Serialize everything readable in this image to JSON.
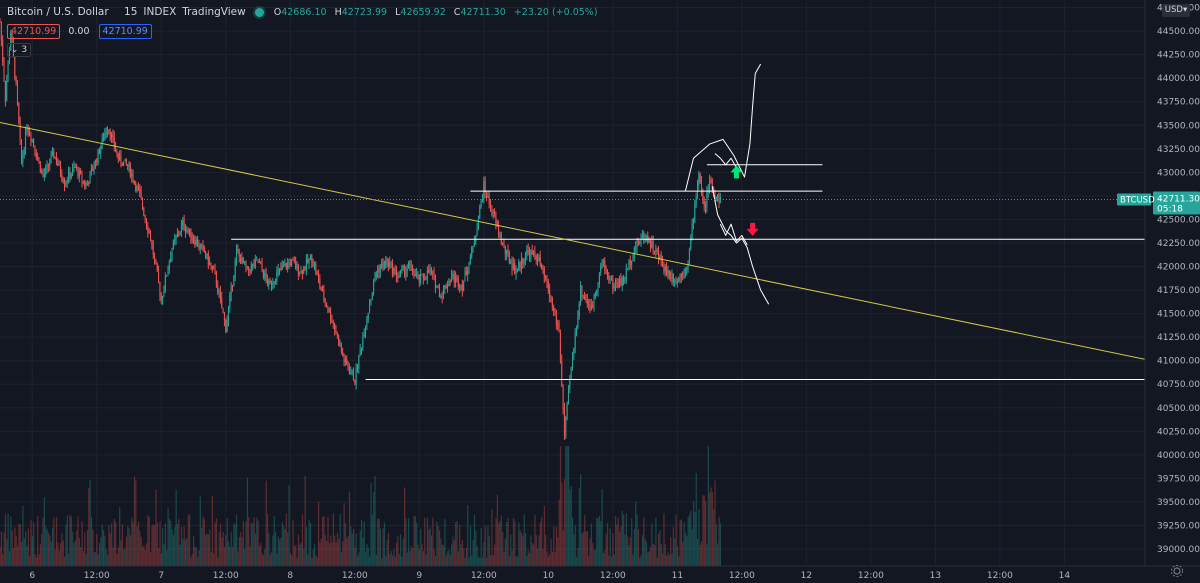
{
  "header": {
    "symbol_title": "Bitcoin / U.S. Dollar",
    "interval": "15",
    "exchange": "INDEX",
    "source": "TradingView",
    "status_color": "#26a69a",
    "o_label": "O",
    "o_value": "42686.10",
    "h_label": "H",
    "h_value": "42723.99",
    "l_label": "L",
    "l_value": "42659.92",
    "c_label": "C",
    "c_value": "42711.30",
    "change": "+23.20 (+0.05%)"
  },
  "quote": {
    "bid": "42710.99",
    "spread": "0.00",
    "ask": "42710.99"
  },
  "indicators_toggle": {
    "icon": "chevron-down-icon",
    "count": "3"
  },
  "currency_button": "USD",
  "settings_icon": "gear-icon",
  "colors": {
    "background": "#131722",
    "up": "#26a69a",
    "down": "#ef5350",
    "trendline": "#d1c94a",
    "levels": "#ffffff",
    "arrow_up": "#00e676",
    "arrow_down": "#ff1744"
  },
  "chart_data": {
    "type": "candlestick",
    "symbol": "BTCUSD",
    "interval_minutes": 15,
    "price_axis": {
      "ticks": [
        "39000.00",
        "39250.00",
        "39500.00",
        "39750.00",
        "40000.00",
        "40250.00",
        "40500.00",
        "40750.00",
        "41000.00",
        "41250.00",
        "41500.00",
        "41750.00",
        "42000.00",
        "42250.00",
        "42500.00",
        "42750.00",
        "43000.00",
        "43250.00",
        "43500.00",
        "43750.00",
        "44000.00",
        "44250.00",
        "44500.00",
        "44750.00"
      ],
      "range": [
        38820,
        44830
      ]
    },
    "time_axis": {
      "ticks": [
        "6",
        "12:00",
        "7",
        "12:00",
        "8",
        "12:00",
        "9",
        "12:00",
        "10",
        "12:00",
        "11",
        "12:00",
        "12",
        "12:00",
        "13",
        "12:00",
        "14"
      ],
      "range_hours": [
        0,
        213
      ]
    },
    "last_price": {
      "label": "BTCUSD",
      "value": "42711.30",
      "countdown": "05:18",
      "price": 42711.3
    },
    "price_path": [
      [
        0,
        44600
      ],
      [
        1,
        43800
      ],
      [
        2,
        44500
      ],
      [
        3,
        43900
      ],
      [
        4,
        43100
      ],
      [
        5,
        43500
      ],
      [
        6,
        43350
      ],
      [
        8,
        42950
      ],
      [
        10,
        43200
      ],
      [
        12,
        42900
      ],
      [
        14,
        43050
      ],
      [
        16,
        42850
      ],
      [
        18,
        43150
      ],
      [
        20,
        43500
      ],
      [
        22,
        43150
      ],
      [
        24,
        43050
      ],
      [
        26,
        42750
      ],
      [
        28,
        42300
      ],
      [
        30,
        41650
      ],
      [
        32,
        42200
      ],
      [
        34,
        42450
      ],
      [
        36,
        42300
      ],
      [
        38,
        42150
      ],
      [
        40,
        41900
      ],
      [
        42,
        41350
      ],
      [
        44,
        42150
      ],
      [
        46,
        41950
      ],
      [
        48,
        42050
      ],
      [
        50,
        41800
      ],
      [
        52,
        41950
      ],
      [
        54,
        42050
      ],
      [
        56,
        41950
      ],
      [
        58,
        42100
      ],
      [
        60,
        41700
      ],
      [
        62,
        41400
      ],
      [
        64,
        41000
      ],
      [
        66,
        40800
      ],
      [
        68,
        41400
      ],
      [
        70,
        41950
      ],
      [
        72,
        42050
      ],
      [
        74,
        41900
      ],
      [
        76,
        42000
      ],
      [
        78,
        41850
      ],
      [
        80,
        41950
      ],
      [
        82,
        41700
      ],
      [
        84,
        41900
      ],
      [
        86,
        41800
      ],
      [
        88,
        42200
      ],
      [
        90,
        42850
      ],
      [
        92,
        42500
      ],
      [
        94,
        42150
      ],
      [
        96,
        41950
      ],
      [
        98,
        42150
      ],
      [
        100,
        42100
      ],
      [
        102,
        41750
      ],
      [
        104,
        41300
      ],
      [
        105,
        40200
      ],
      [
        106,
        40800
      ],
      [
        108,
        41750
      ],
      [
        110,
        41550
      ],
      [
        112,
        42050
      ],
      [
        114,
        41800
      ],
      [
        116,
        41850
      ],
      [
        118,
        42200
      ],
      [
        120,
        42350
      ],
      [
        122,
        42150
      ],
      [
        124,
        41950
      ],
      [
        126,
        41850
      ],
      [
        128,
        42050
      ],
      [
        130,
        43000
      ],
      [
        131,
        42600
      ],
      [
        132,
        42900
      ],
      [
        133,
        42750
      ],
      [
        134,
        42711.3
      ]
    ],
    "volume_scale": "relative",
    "trendline": {
      "from": [
        0,
        43530
      ],
      "to": [
        213,
        41015
      ]
    },
    "levels": [
      {
        "price": 42800,
        "from_hours": 87.5,
        "to_hours": 153
      },
      {
        "price": 43080,
        "from_hours": 131.5,
        "to_hours": 153
      },
      {
        "price": 42290,
        "from_hours": 43,
        "to_hours": 213
      },
      {
        "price": 40800,
        "from_hours": 68,
        "to_hours": 213
      }
    ],
    "arrows": [
      {
        "direction": "up",
        "price": 43000,
        "hours": 137
      },
      {
        "direction": "down",
        "price": 42400,
        "hours": 140
      }
    ],
    "drawings": [
      {
        "kind": "projection-up",
        "points": [
          [
            127.5,
            42800
          ],
          [
            129,
            43150
          ],
          [
            132,
            43300
          ],
          [
            134.5,
            43350
          ],
          [
            136.5,
            43180
          ],
          [
            138.5,
            42950
          ],
          [
            139.5,
            43300
          ],
          [
            140,
            43700
          ],
          [
            140.5,
            44050
          ],
          [
            141.5,
            44150
          ]
        ]
      },
      {
        "kind": "projection-down",
        "points": [
          [
            132.5,
            42850
          ],
          [
            133.5,
            42550
          ],
          [
            135,
            42380
          ],
          [
            136,
            42330
          ],
          [
            137,
            42250
          ],
          [
            138,
            42300
          ],
          [
            139,
            42200
          ],
          [
            140,
            42000
          ],
          [
            141.5,
            41750
          ],
          [
            143,
            41600
          ]
        ]
      },
      {
        "kind": "small-zigzag",
        "points": [
          [
            133,
            43200
          ],
          [
            134,
            43150
          ],
          [
            135,
            43080
          ],
          [
            136,
            43150
          ],
          [
            137,
            43050
          ]
        ]
      },
      {
        "kind": "small-zigzag-low",
        "points": [
          [
            134,
            42450
          ],
          [
            135,
            42330
          ],
          [
            136,
            42450
          ],
          [
            137,
            42270
          ],
          [
            138,
            42330
          ],
          [
            139,
            42230
          ]
        ]
      }
    ],
    "grid": true,
    "legend": "top-left"
  }
}
